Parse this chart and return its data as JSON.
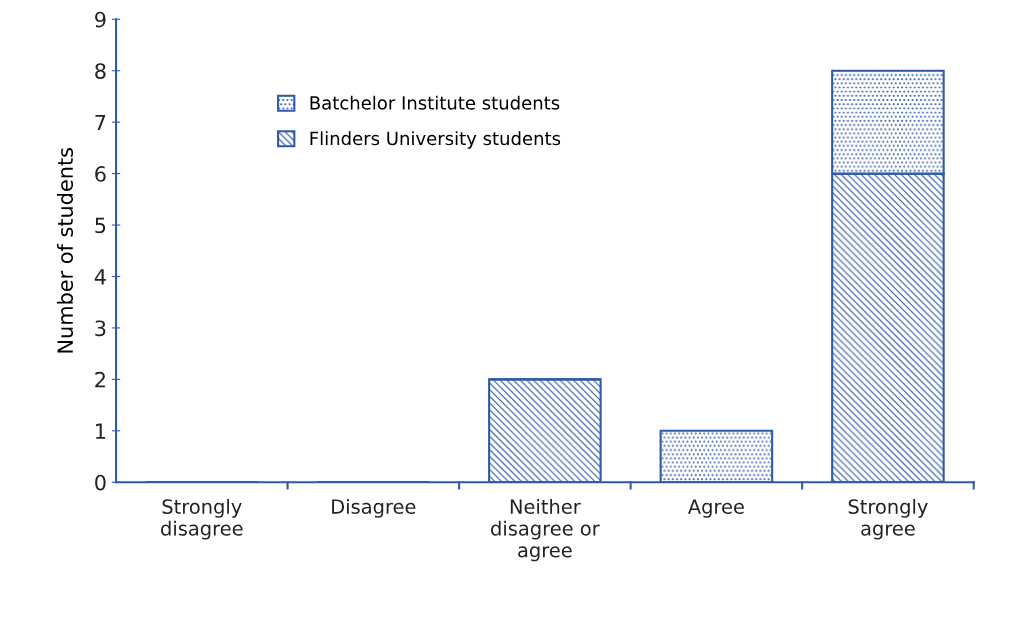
{
  "chart_data": {
    "type": "bar",
    "stacked": true,
    "ylabel": "Number of students",
    "categories": [
      "Strongly\ndisagree",
      "Disagree",
      "Neither\ndisagree or\nagree",
      "Agree",
      "Strongly\nagree"
    ],
    "series": [
      {
        "name": "Flinders University students",
        "color": "#2f5aa8",
        "values": [
          0,
          0,
          2,
          0,
          6
        ]
      },
      {
        "name": "Batchelor Institute students",
        "color": "#2f5aa8",
        "values": [
          0,
          0,
          0,
          1,
          2
        ]
      }
    ],
    "ylim": [
      0,
      9
    ],
    "yticks": [
      0,
      1,
      2,
      3,
      4,
      5,
      6,
      7,
      8,
      9
    ],
    "grid": false,
    "legend": "top left"
  }
}
